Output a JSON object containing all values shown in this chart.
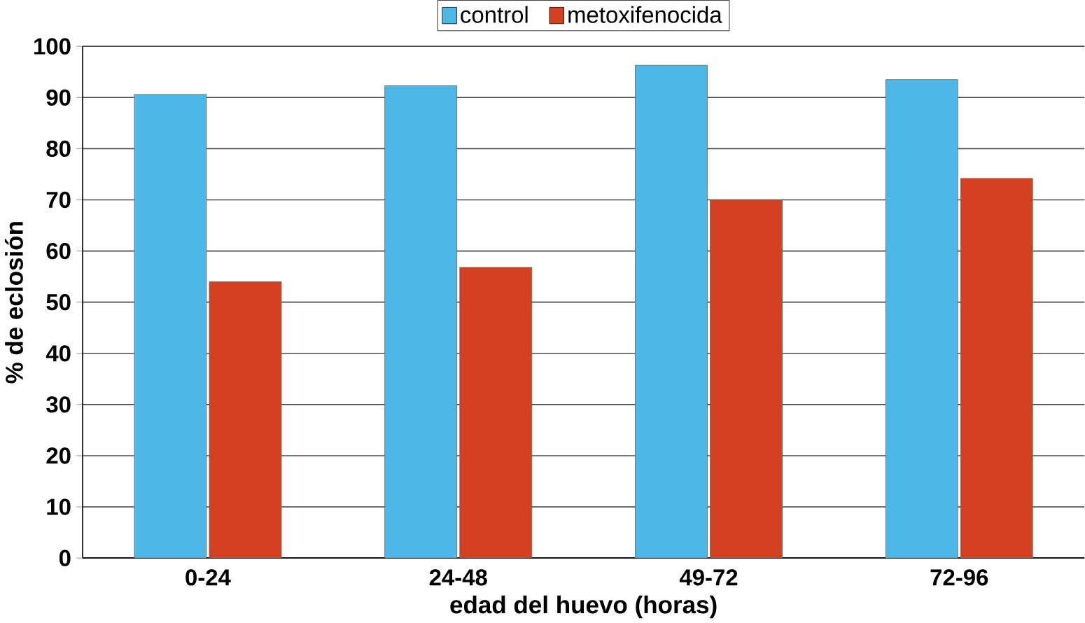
{
  "chart_data": {
    "type": "bar",
    "xlabel": "edad del huevo (horas)",
    "ylabel": "% de eclosión",
    "categories": [
      "0-24",
      "24-48",
      "49-72",
      "72-96"
    ],
    "series": [
      {
        "name": "control",
        "color": "#4db8e8",
        "values": [
          90.6,
          92.3,
          96.3,
          93.5
        ]
      },
      {
        "name": "metoxifenocida",
        "color": "#d2401f",
        "values": [
          54.0,
          56.8,
          70.0,
          74.2
        ]
      }
    ],
    "ylim": [
      0,
      100
    ],
    "yticks": [
      0,
      10,
      20,
      30,
      40,
      50,
      60,
      70,
      80,
      90,
      100
    ],
    "grid": "y",
    "legend": "top"
  }
}
